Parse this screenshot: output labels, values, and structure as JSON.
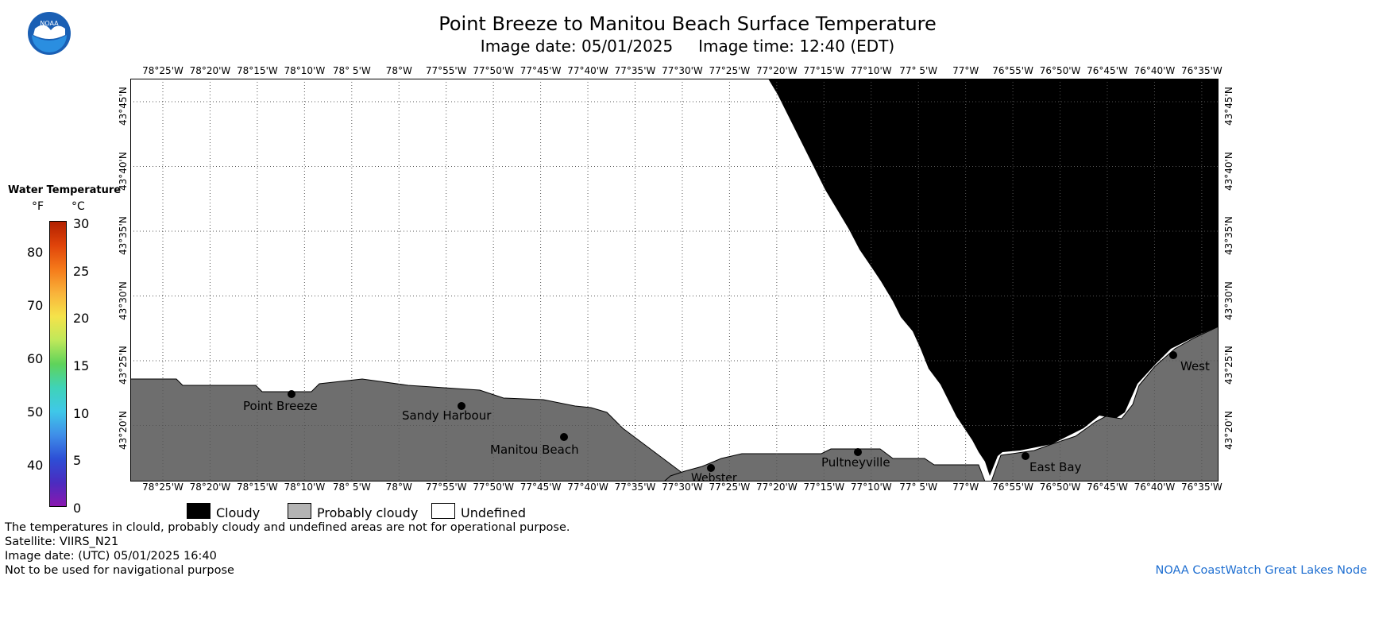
{
  "header": {
    "title": "Point Breeze to Manitou Beach Surface Temperature",
    "image_date_label": "Image date: 05/01/2025",
    "image_time_label": "Image time: 12:40 (EDT)"
  },
  "logo": {
    "text": "NOAA",
    "icon": "noaa-logo-icon"
  },
  "axes": {
    "longitude_labels": [
      "78°25'W",
      "78°20'W",
      "78°15'W",
      "78°10'W",
      "78° 5'W",
      "78°W",
      "77°55'W",
      "77°50'W",
      "77°45'W",
      "77°40'W",
      "77°35'W",
      "77°30'W",
      "77°25'W",
      "77°20'W",
      "77°15'W",
      "77°10'W",
      "77° 5'W",
      "77°W",
      "76°55'W",
      "76°50'W",
      "76°45'W",
      "76°40'W",
      "76°35'W"
    ],
    "latitude_labels": [
      "43°45'N",
      "43°40'N",
      "43°35'N",
      "43°30'N",
      "43°25'N",
      "43°20'N"
    ],
    "grid": "dotted"
  },
  "colorbar": {
    "title": "Water Temperature",
    "unit_f": "°F",
    "unit_c": "°C",
    "fahrenheit_ticks": [
      "80",
      "70",
      "60",
      "50",
      "40"
    ],
    "celsius_ticks": [
      "30",
      "25",
      "20",
      "15",
      "10",
      "5",
      "0"
    ],
    "colors": [
      "#b22000",
      "#e0440a",
      "#f57a1a",
      "#f9b23a",
      "#f5e34a",
      "#bfe85a",
      "#5fd35a",
      "#3fd3b8",
      "#3fc8e8",
      "#3f8ee8",
      "#2d4fd6",
      "#4a2cc0",
      "#8a18b0"
    ]
  },
  "map_legend": {
    "cloudy": {
      "label": "Cloudy",
      "color": "#000000"
    },
    "probably_cloudy": {
      "label": "Probably cloudy",
      "color": "#b4b4b4"
    },
    "undefined": {
      "label": "Undefined",
      "color": "#ffffff"
    }
  },
  "places": [
    {
      "name": "Point Breeze"
    },
    {
      "name": "Sandy Harbour"
    },
    {
      "name": "Manitou Beach"
    },
    {
      "name": "Webster"
    },
    {
      "name": "Pultneyville"
    },
    {
      "name": "East Bay"
    },
    {
      "name": "West"
    }
  ],
  "colors": {
    "land": "#6e6e6e",
    "cloud": "#000000",
    "undefined": "#ffffff",
    "credit": "#1f6fd1"
  },
  "footer": {
    "notes": [
      "The temperatures in clould, probably cloudy and undefined areas are not for operational purpose.",
      "Satellite: VIIRS_N21",
      "Image date: (UTC) 05/01/2025  16:40",
      "Not to be used for navigational purpose"
    ],
    "credit": "NOAA CoastWatch Great Lakes Node"
  }
}
